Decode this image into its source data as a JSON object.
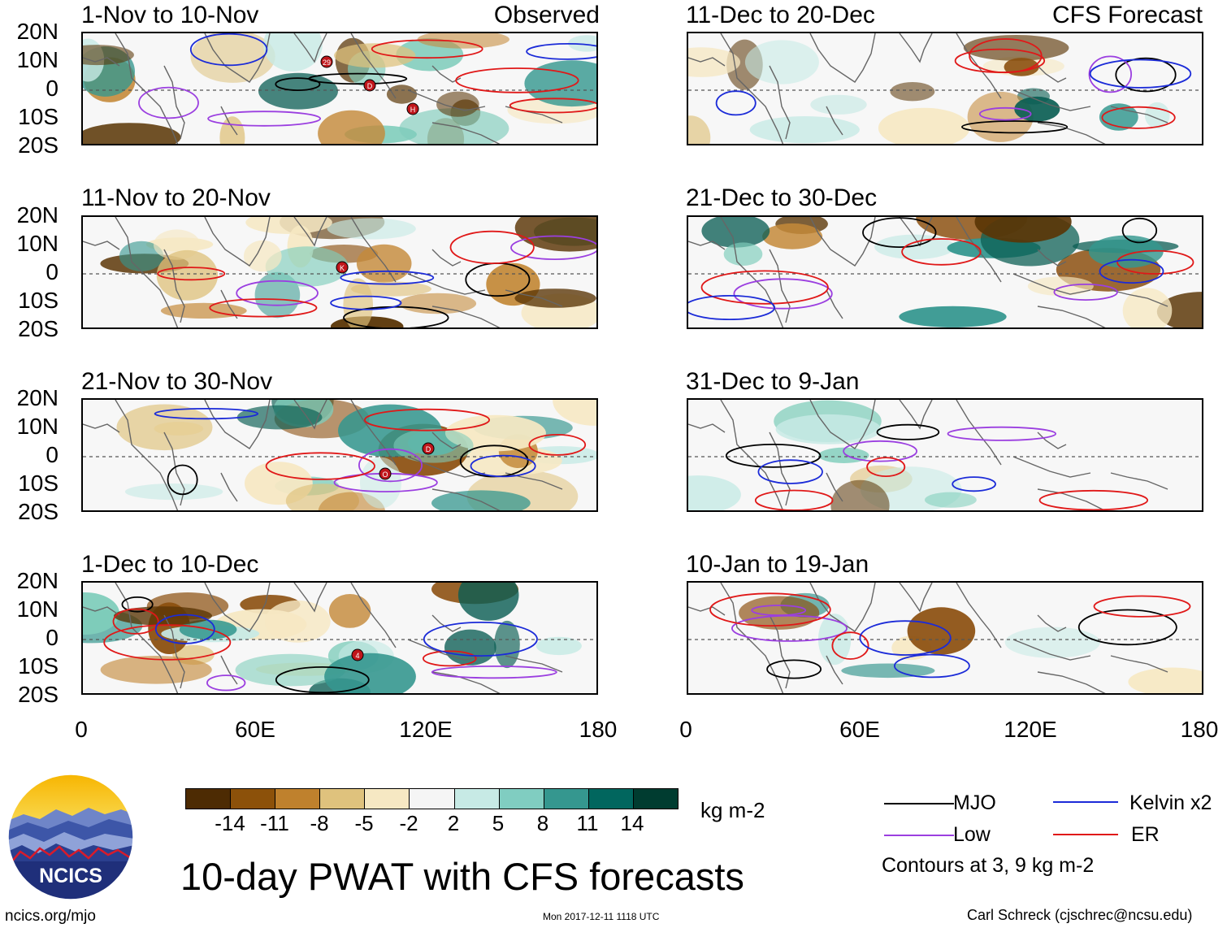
{
  "colors": {
    "mjo": "#000000",
    "kelvin": "#1b2bd8",
    "low": "#9b3fe0",
    "er": "#e01818",
    "coast": "#666666",
    "dry3": "#5a3505",
    "dry2": "#8c5010",
    "dry1": "#c48a3a",
    "wet1": "#7fcdbb",
    "wet2": "#35978f",
    "wet3": "#0b5e54"
  },
  "header": {
    "observed": "Observed",
    "forecast": "CFS Forecast"
  },
  "panels": [
    {
      "title": "1-Nov to 10-Nov"
    },
    {
      "title": "11-Nov to 20-Nov"
    },
    {
      "title": "21-Nov to 30-Nov"
    },
    {
      "title": "1-Dec to 10-Dec"
    },
    {
      "title": "11-Dec to 20-Dec"
    },
    {
      "title": "21-Dec to 30-Dec"
    },
    {
      "title": "31-Dec to 9-Jan"
    },
    {
      "title": "10-Jan to 19-Jan"
    }
  ],
  "axes": {
    "lat_labels": [
      "20N",
      "10N",
      "0",
      "10S",
      "20S"
    ],
    "lon_labels": [
      "0",
      "60E",
      "120E",
      "180"
    ]
  },
  "colorbar": {
    "colors": [
      "#4d2b03",
      "#8c510a",
      "#bf812d",
      "#dfc27d",
      "#f6e8c3",
      "#f5f5f5",
      "#c7eae5",
      "#80cdc1",
      "#35978f",
      "#01665e",
      "#003c30"
    ],
    "labels": [
      "-14",
      "-11",
      "-8",
      "-5",
      "-2",
      "2",
      "5",
      "8",
      "11",
      "14"
    ],
    "unit": "kg m-2"
  },
  "title": "10-day PWAT with CFS forecasts",
  "legend": {
    "mjo": "MJO",
    "kelvin": "Kelvin x2",
    "low": "Low",
    "er": "ER",
    "note": "Contours at 3, 9 kg m-2"
  },
  "logo": {
    "text": "NCICS"
  },
  "footer": {
    "url": "ncics.org/mjo",
    "timestamp": "Mon 2017-12-11 1118 UTC",
    "author": "Carl Schreck (cjschrec@ncsu.edu)"
  },
  "storms": [
    {
      "panel": 0,
      "label": "29"
    },
    {
      "panel": 0,
      "label": "D"
    },
    {
      "panel": 0,
      "label": "H"
    },
    {
      "panel": 1,
      "label": "K"
    },
    {
      "panel": 2,
      "label": "O"
    },
    {
      "panel": 2,
      "label": "D"
    },
    {
      "panel": 3,
      "label": "4"
    }
  ]
}
